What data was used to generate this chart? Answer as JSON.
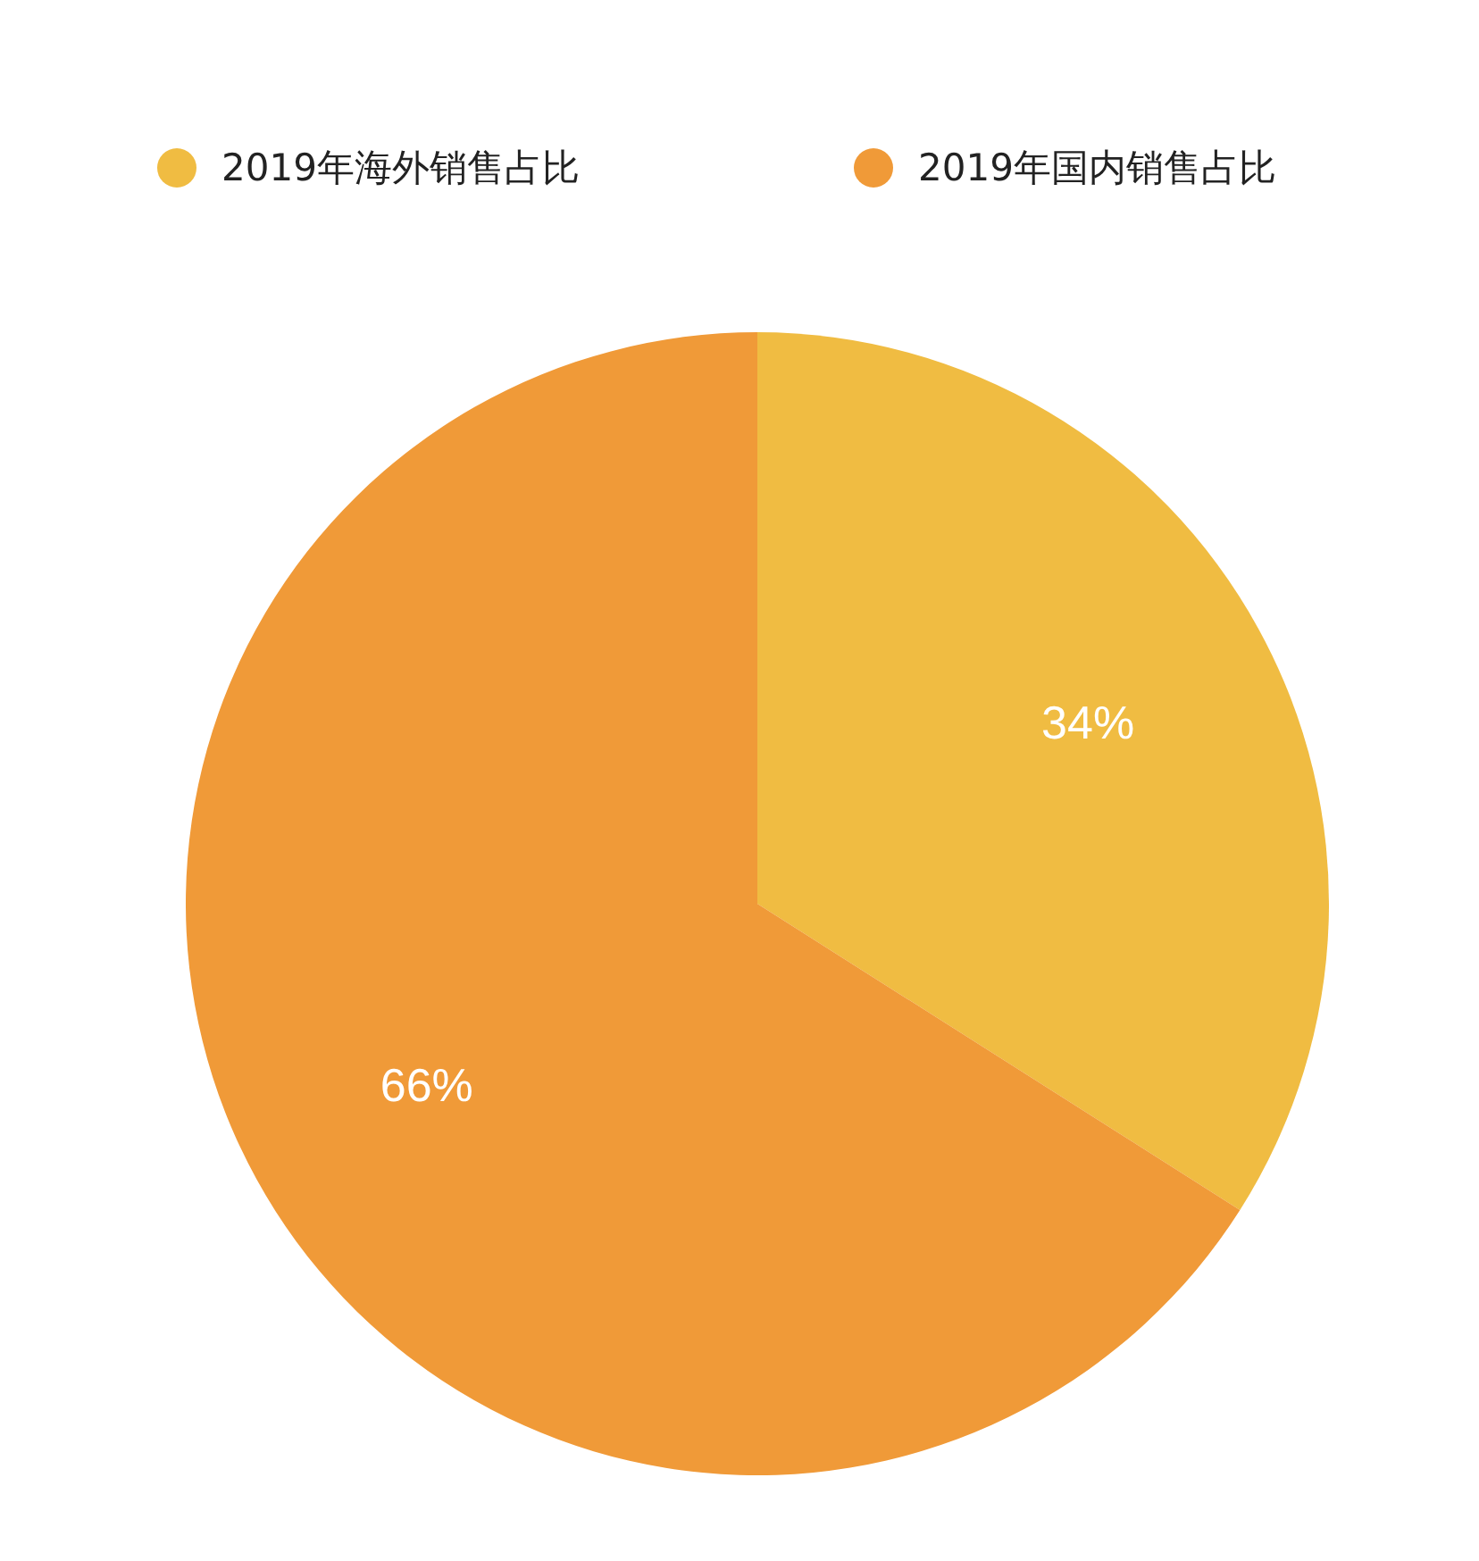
{
  "chart_data": {
    "type": "pie",
    "categories": [
      "2019年海外销售占比",
      "2019年国内销售占比"
    ],
    "values": [
      34,
      66
    ],
    "colors": [
      "#f0bc42",
      "#f09a38"
    ],
    "value_labels": [
      "34%",
      "66%"
    ],
    "legend": "top"
  }
}
